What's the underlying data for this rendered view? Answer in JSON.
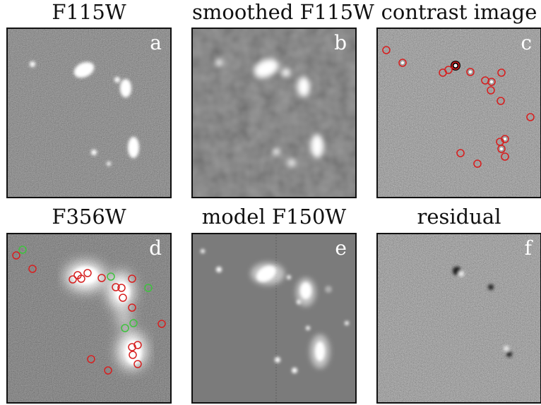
{
  "panels": [
    {
      "id": "a",
      "title": "F115W",
      "letter": "a",
      "kind": "raw"
    },
    {
      "id": "b",
      "title": "smoothed F115W",
      "letter": "b",
      "kind": "smooth"
    },
    {
      "id": "c",
      "title": "contrast image",
      "letter": "c",
      "kind": "contrast"
    },
    {
      "id": "d",
      "title": "F356W",
      "letter": "d",
      "kind": "f356"
    },
    {
      "id": "e",
      "title": "model F150W",
      "letter": "e",
      "kind": "model"
    },
    {
      "id": "f",
      "title": "residual",
      "letter": "f",
      "kind": "residual"
    }
  ],
  "colors": {
    "red_marker": "#d62020",
    "green_marker": "#3fc23f",
    "frame": "#111111"
  }
}
